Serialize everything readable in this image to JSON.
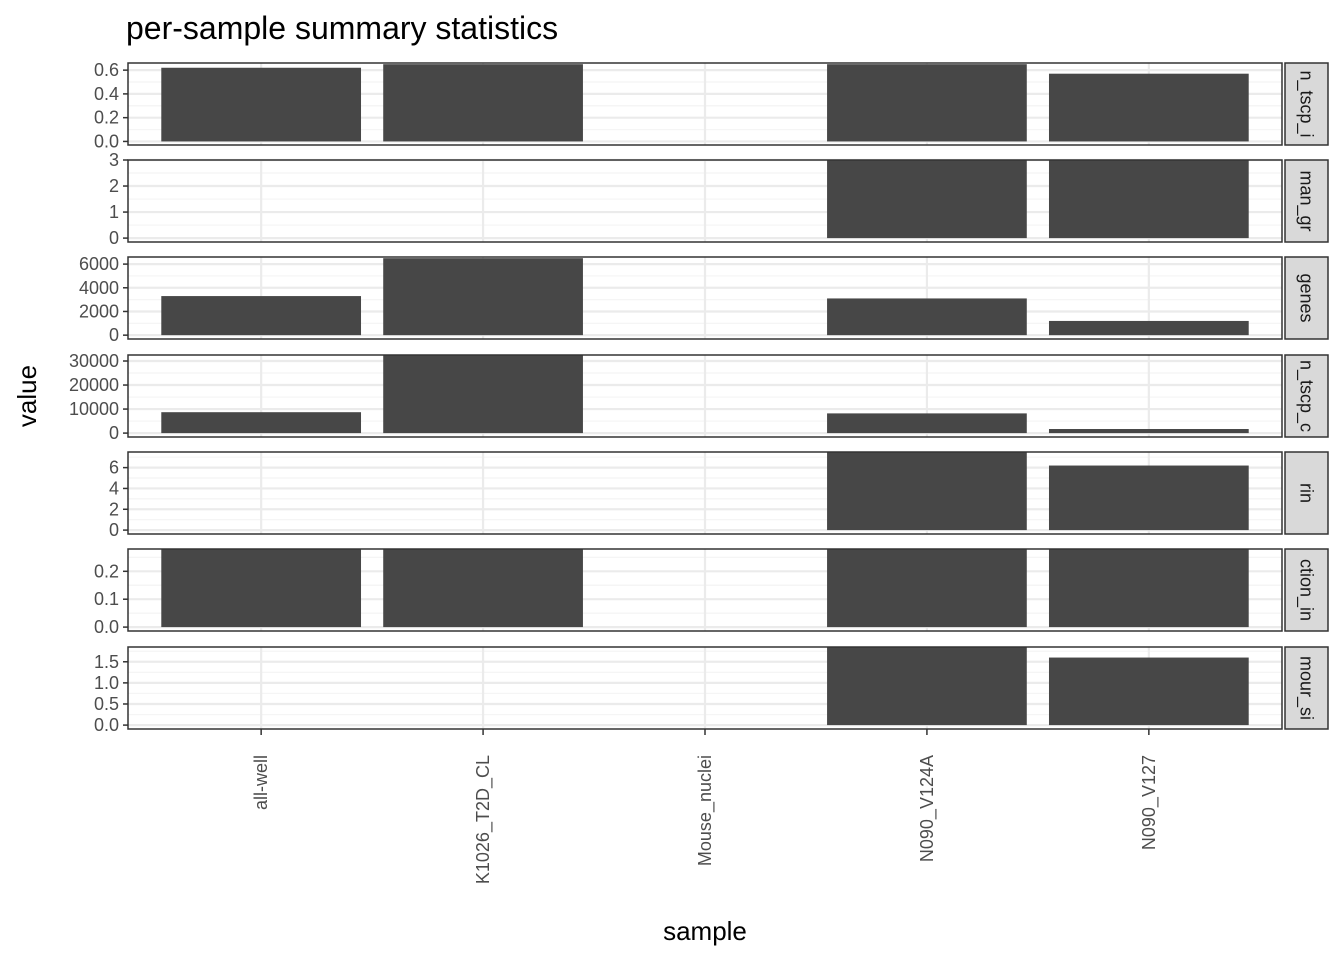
{
  "chart_data": {
    "type": "bar",
    "title": "per-sample summary statistics",
    "xlabel": "sample",
    "ylabel": "value",
    "categories": [
      "all-well",
      "K1026_T2D_CL",
      "Mouse_nuclei",
      "N090_V124A",
      "N090_V127"
    ],
    "grid": true,
    "colors": {
      "bar": "#474747",
      "strip_fill": "#d9d9d9",
      "grid_major": "#ebebeb",
      "grid_minor": "#f5f5f5",
      "panel_border": "#333333"
    },
    "facets": [
      {
        "strip_label": "n_tscp_i",
        "values": [
          0.62,
          0.65,
          null,
          0.65,
          0.57
        ],
        "ylim": [
          -0.03,
          0.66
        ],
        "ticks": [
          0.0,
          0.2,
          0.4,
          0.6
        ],
        "tick_labels": [
          "0.0",
          "0.2",
          "0.4",
          "0.6"
        ]
      },
      {
        "strip_label": "man_gr",
        "values": [
          null,
          null,
          null,
          3,
          3
        ],
        "ylim": [
          -0.15,
          3.0
        ],
        "ticks": [
          0,
          1,
          2,
          3
        ],
        "tick_labels": [
          "0",
          "1",
          "2",
          "3"
        ]
      },
      {
        "strip_label": "genes",
        "values": [
          3300,
          6500,
          null,
          3100,
          1200
        ],
        "ylim": [
          -325,
          6600
        ],
        "ticks": [
          0,
          2000,
          4000,
          6000
        ],
        "tick_labels": [
          "0",
          "2000",
          "4000",
          "6000"
        ]
      },
      {
        "strip_label": "n_tscp_c",
        "values": [
          8700,
          32500,
          null,
          8200,
          1700
        ],
        "ylim": [
          -1625,
          32500
        ],
        "ticks": [
          0,
          10000,
          20000,
          30000
        ],
        "tick_labels": [
          "0",
          "10000",
          "20000",
          "30000"
        ]
      },
      {
        "strip_label": "rin",
        "values": [
          null,
          null,
          null,
          7.5,
          6.2
        ],
        "ylim": [
          -0.375,
          7.5
        ],
        "ticks": [
          0,
          2,
          4,
          6
        ],
        "tick_labels": [
          "0",
          "2",
          "4",
          "6"
        ]
      },
      {
        "strip_label": "ction_in",
        "values": [
          0.28,
          0.28,
          null,
          0.28,
          0.28
        ],
        "ylim": [
          -0.014,
          0.28
        ],
        "ticks": [
          0.0,
          0.1,
          0.2
        ],
        "tick_labels": [
          "0.0",
          "0.1",
          "0.2"
        ]
      },
      {
        "strip_label": "mour_si",
        "values": [
          null,
          null,
          null,
          1.85,
          1.6
        ],
        "ylim": [
          -0.0925,
          1.85
        ],
        "ticks": [
          0.0,
          0.5,
          1.0,
          1.5
        ],
        "tick_labels": [
          "0.0",
          "0.5",
          "1.0",
          "1.5"
        ]
      }
    ]
  }
}
